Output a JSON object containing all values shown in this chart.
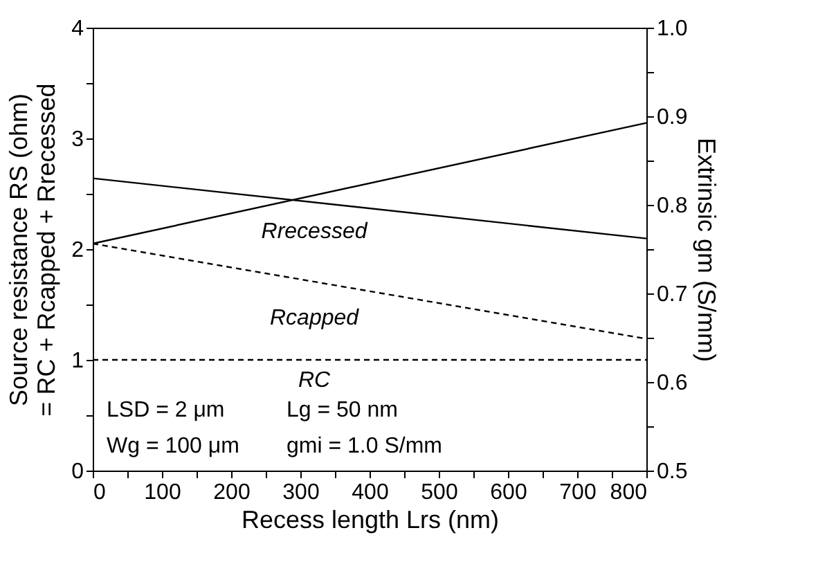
{
  "chart_data": {
    "type": "line",
    "xlabel": "Recess length Lrs (nm)",
    "ylabel": "Source resistance RS (ohm)\n= RC + Rcapped + Rrecessed",
    "y2label": "Extrinsic gm (S/mm)",
    "x": [
      0,
      800
    ],
    "series": [
      {
        "color": "#000000",
        "values": [
          2.05,
          3.14
        ],
        "line_style": "solid"
      },
      {
        "color": "#000000",
        "values": [
          0.83,
          0.762
        ],
        "line_style": "solid",
        "axis": "y2"
      },
      {
        "color": "#000000",
        "values": [
          2.05,
          1.19
        ],
        "line_style": "dashed"
      },
      {
        "color": "#000000",
        "values": [
          1.0,
          1.0
        ],
        "line_style": "dashed"
      }
    ],
    "xlim": [
      0,
      800
    ],
    "xticks": [
      0,
      {
        "value": 50,
        "label": null
      },
      100,
      {
        "value": 150,
        "label": null
      },
      200,
      {
        "value": 250,
        "label": null
      },
      300,
      {
        "value": 350,
        "label": null
      },
      400,
      {
        "value": 450,
        "label": null
      },
      500,
      {
        "value": 550,
        "label": null
      },
      600,
      {
        "value": 650,
        "label": null
      },
      700,
      {
        "value": 750,
        "label": null
      },
      800
    ],
    "ylim": [
      0,
      4
    ],
    "yticks": [
      0,
      {
        "value": 0.5,
        "label": null
      },
      1,
      {
        "value": 1.5,
        "label": null
      },
      2,
      {
        "value": 2.5,
        "label": null
      },
      3,
      {
        "value": 3.5,
        "label": null
      },
      4
    ],
    "y2lim": [
      0.5,
      1.0
    ],
    "y2ticks": [
      {
        "value": 0.5,
        "label": "0.5"
      },
      {
        "value": 0.55,
        "label": null
      },
      {
        "value": 0.6,
        "label": "0.6"
      },
      {
        "value": 0.65,
        "label": null
      },
      {
        "value": 0.7,
        "label": "0.7"
      },
      {
        "value": 0.75,
        "label": null
      },
      {
        "value": 0.8,
        "label": "0.8"
      },
      {
        "value": 0.85,
        "label": null
      },
      {
        "value": 0.9,
        "label": "0.9"
      },
      {
        "value": 0.95,
        "label": null
      },
      {
        "value": 1.0,
        "label": "1.0"
      }
    ],
    "annotations": [
      "Rrecessed",
      "Rcapped",
      "RC",
      "LSD = 2 μm",
      "Lg = 50 nm",
      "Wg = 100 μm",
      "gmi = 1.0 S/mm"
    ],
    "grid": false,
    "marker": "none"
  }
}
